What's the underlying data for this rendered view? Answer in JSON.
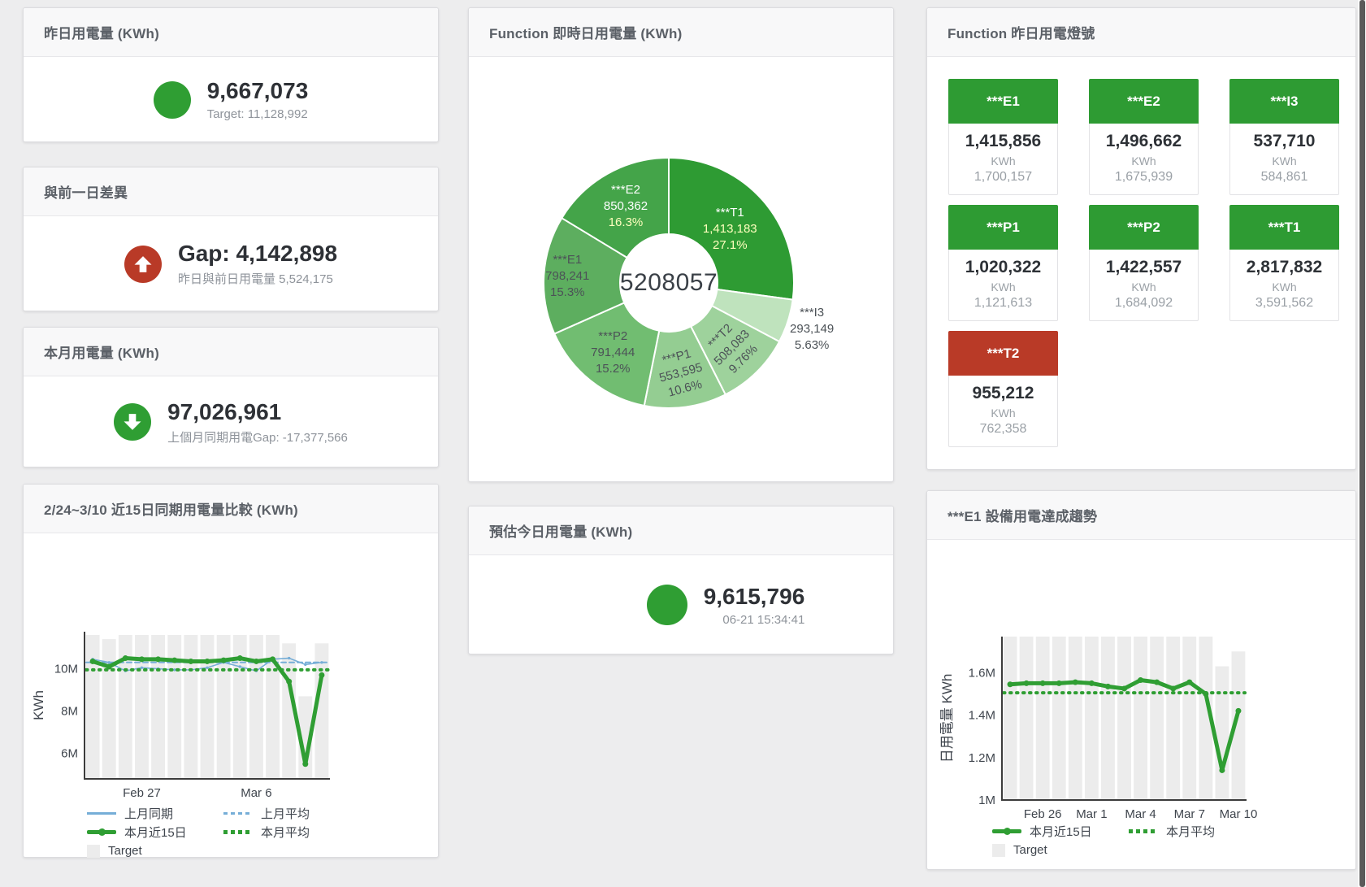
{
  "page": {
    "background": "#ededee",
    "scrollbar_color": "#5a5a5a"
  },
  "colors": {
    "green": "#2f9e33",
    "tile_green": "#2e9b33",
    "red": "#b93a27",
    "blue": "#76aed7",
    "target_bar": "#ececec",
    "header_text": "#5b6067",
    "value_text": "#2e3136",
    "sub_text": "#8e939a",
    "axis_text": "#3f454d"
  },
  "panels": {
    "yesterday": {
      "title": "昨日用電量 (KWh)",
      "value": "9,667,073",
      "sub": "Target: 11,128,992",
      "indicator": "green-circle"
    },
    "diff": {
      "title": "與前一日差異",
      "value": "Gap: 4,142,898",
      "sub": "昨日與前日用電量 5,524,175",
      "indicator": "red-up-arrow"
    },
    "month": {
      "title": "本月用電量 (KWh)",
      "value": "97,026,961",
      "sub": "上個月同期用電Gap: -17,377,566",
      "indicator": "green-down-arrow"
    },
    "estimate": {
      "title": "預估今日用電量 (KWh)",
      "value": "9,615,796",
      "sub": "06-21 15:34:41",
      "indicator": "green-circle"
    },
    "lights": {
      "title": "Function 昨日用電燈號",
      "unit": "KWh",
      "tiles": [
        {
          "label": "***E1",
          "value": "1,415,856",
          "unit": "KWh",
          "target": "1,700,157",
          "status": "green"
        },
        {
          "label": "***E2",
          "value": "1,496,662",
          "unit": "KWh",
          "target": "1,675,939",
          "status": "green"
        },
        {
          "label": "***I3",
          "value": "537,710",
          "unit": "KWh",
          "target": "584,861",
          "status": "green"
        },
        {
          "label": "***P1",
          "value": "1,020,322",
          "unit": "KWh",
          "target": "1,121,613",
          "status": "green"
        },
        {
          "label": "***P2",
          "value": "1,422,557",
          "unit": "KWh",
          "target": "1,684,092",
          "status": "green"
        },
        {
          "label": "***T1",
          "value": "2,817,832",
          "unit": "KWh",
          "target": "3,591,562",
          "status": "green"
        },
        {
          "label": "***T2",
          "value": "955,212",
          "unit": "KWh",
          "target": "762,358",
          "status": "red"
        }
      ]
    }
  },
  "chart_data": [
    {
      "id": "function-realtime-donut",
      "type": "pie",
      "title": "Function 即時日用電量 (KWh)",
      "center_total": "5208057",
      "slices": [
        {
          "name": "***T1",
          "value": 1413183,
          "value_str": "1,413,183",
          "pct_str": "27.1%",
          "color": "#2e9b33",
          "label_r": 100,
          "label_rotate": 0,
          "name_color": "#ffffff",
          "num_color": "#ffffbe",
          "pct_color": "#ffffbe"
        },
        {
          "name": "***I3",
          "value": 293149,
          "value_str": "293,149",
          "pct_str": "5.63%",
          "color": "#bfe3bd",
          "label_r": 185,
          "label_rotate": 0,
          "name_color": "#4c5257",
          "num_color": "#4c5257",
          "pct_color": "#4c5257"
        },
        {
          "name": "***T2",
          "value": 508083,
          "value_str": "508,083",
          "pct_str": "9.76%",
          "color": "#9ed29c",
          "label_r": 112,
          "label_rotate": -45,
          "name_color": "#4c5257",
          "num_color": "#4c5257",
          "pct_color": "#4c5257"
        },
        {
          "name": "***P1",
          "value": 553595,
          "value_str": "553,595",
          "pct_str": "10.6%",
          "color": "#94cd92",
          "label_r": 112,
          "label_rotate": -15,
          "name_color": "#4c5257",
          "num_color": "#4c5257",
          "pct_color": "#4c5257"
        },
        {
          "name": "***P2",
          "value": 791444,
          "value_str": "791,444",
          "pct_str": "15.2%",
          "color": "#71bd71",
          "label_r": 110,
          "label_rotate": 0,
          "name_color": "#4c5257",
          "num_color": "#4c5257",
          "pct_color": "#4c5257"
        },
        {
          "name": "***E1",
          "value": 798241,
          "value_str": "798,241",
          "pct_str": "15.3%",
          "color": "#5dae5f",
          "label_r": 125,
          "label_rotate": 0,
          "name_color": "#4c5257",
          "num_color": "#4c5257",
          "pct_color": "#4c5257"
        },
        {
          "name": "***E2",
          "value": 850362,
          "value_str": "850,362",
          "pct_str": "16.3%",
          "color": "#44a449",
          "label_r": 108,
          "label_rotate": 0,
          "name_color": "#ffffff",
          "num_color": "#ffffff",
          "pct_color": "#ffffbe"
        }
      ]
    },
    {
      "id": "compare-15day",
      "type": "line+bar",
      "title": "2/24~3/10 近15日同期用電量比較 (KWh)",
      "ylabel": "KWh",
      "unit": "M",
      "ylim": [
        4.8,
        11.75
      ],
      "yticks": [
        {
          "v": 6,
          "label": "6M"
        },
        {
          "v": 8,
          "label": "8M"
        },
        {
          "v": 10,
          "label": "10M"
        }
      ],
      "categories": [
        "2/24",
        "2/25",
        "2/26",
        "2/27",
        "2/28",
        "3/1",
        "3/2",
        "3/3",
        "3/4",
        "3/5",
        "3/6",
        "3/7",
        "3/8",
        "3/9",
        "3/10"
      ],
      "xticks": [
        {
          "i": 3,
          "label": "Feb 27"
        },
        {
          "i": 10,
          "label": "Mar 6"
        }
      ],
      "target_label": "Target",
      "target_color": "#ececec",
      "target": [
        11.6,
        11.4,
        11.6,
        11.6,
        11.6,
        11.6,
        11.6,
        11.6,
        11.6,
        11.6,
        11.6,
        11.6,
        11.2,
        8.7,
        11.2
      ],
      "series": [
        {
          "name": "上月同期",
          "style": "thin",
          "color": "#76aed7",
          "values": [
            10.45,
            10.3,
            9.9,
            10.05,
            10.0,
            9.95,
            9.95,
            10.05,
            10.3,
            10.1,
            9.9,
            10.45,
            10.5,
            10.2,
            10.3
          ]
        },
        {
          "name": "上月平均",
          "style": "dashed",
          "color": "#76aed7",
          "value": 10.3
        },
        {
          "name": "本月近15日",
          "style": "thick",
          "color": "#2f9e33",
          "values": [
            10.35,
            10.1,
            10.5,
            10.45,
            10.45,
            10.4,
            10.35,
            10.35,
            10.4,
            10.5,
            10.35,
            10.45,
            9.4,
            5.5,
            9.7
          ]
        },
        {
          "name": "本月平均",
          "style": "dotted",
          "color": "#2f9e33",
          "value": 9.95
        }
      ]
    },
    {
      "id": "e1-trend",
      "type": "line+bar",
      "title": "***E1 設備用電達成趨勢",
      "ylabel": "日用電量 KWh",
      "unit": "M",
      "ylim": [
        1.0,
        1.77
      ],
      "yticks": [
        {
          "v": 1.0,
          "label": "1M"
        },
        {
          "v": 1.2,
          "label": "1.2M"
        },
        {
          "v": 1.4,
          "label": "1.4M"
        },
        {
          "v": 1.6,
          "label": "1.6M"
        }
      ],
      "categories": [
        "2/24",
        "2/25",
        "2/26",
        "2/27",
        "2/28",
        "3/1",
        "3/2",
        "3/3",
        "3/4",
        "3/5",
        "3/6",
        "3/7",
        "3/8",
        "3/9",
        "3/10"
      ],
      "xticks": [
        {
          "i": 2,
          "label": "Feb 26"
        },
        {
          "i": 5,
          "label": "Mar 1"
        },
        {
          "i": 8,
          "label": "Mar 4"
        },
        {
          "i": 11,
          "label": "Mar 7"
        },
        {
          "i": 14,
          "label": "Mar 10"
        }
      ],
      "target_label": "Target",
      "target_color": "#ececec",
      "target": [
        1.77,
        1.77,
        1.77,
        1.77,
        1.77,
        1.77,
        1.77,
        1.77,
        1.77,
        1.77,
        1.77,
        1.77,
        1.77,
        1.63,
        1.7
      ],
      "series": [
        {
          "name": "本月近15日",
          "style": "thick",
          "color": "#2f9e33",
          "values": [
            1.545,
            1.55,
            1.55,
            1.55,
            1.555,
            1.55,
            1.535,
            1.525,
            1.565,
            1.555,
            1.525,
            1.555,
            1.5,
            1.14,
            1.42
          ]
        },
        {
          "name": "本月平均",
          "style": "dotted",
          "color": "#2f9e33",
          "value": 1.505
        }
      ]
    }
  ]
}
